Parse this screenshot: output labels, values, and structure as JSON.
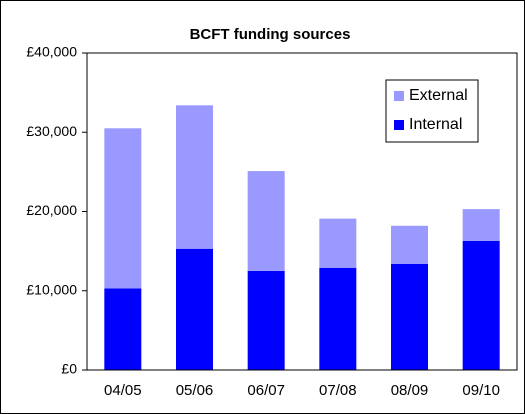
{
  "chart_data": {
    "type": "stacked_bar",
    "title": "BCFT funding sources",
    "categories": [
      "04/05",
      "05/06",
      "06/07",
      "07/08",
      "08/09",
      "09/10"
    ],
    "series": [
      {
        "name": "Internal",
        "color": "#0000ff",
        "values": [
          10300,
          15300,
          12500,
          12900,
          13400,
          16300
        ]
      },
      {
        "name": "External",
        "color": "#9999ff",
        "values": [
          20200,
          18100,
          12600,
          6200,
          4800,
          4000
        ]
      }
    ],
    "ylim": [
      0,
      40000
    ],
    "yticks": [
      {
        "value": 0,
        "label": "£0"
      },
      {
        "value": 10000,
        "label": "£10,000"
      },
      {
        "value": 20000,
        "label": "£20,000"
      },
      {
        "value": 30000,
        "label": "£30,000"
      },
      {
        "value": 40000,
        "label": "£40,000"
      }
    ],
    "legend": "top-right"
  }
}
